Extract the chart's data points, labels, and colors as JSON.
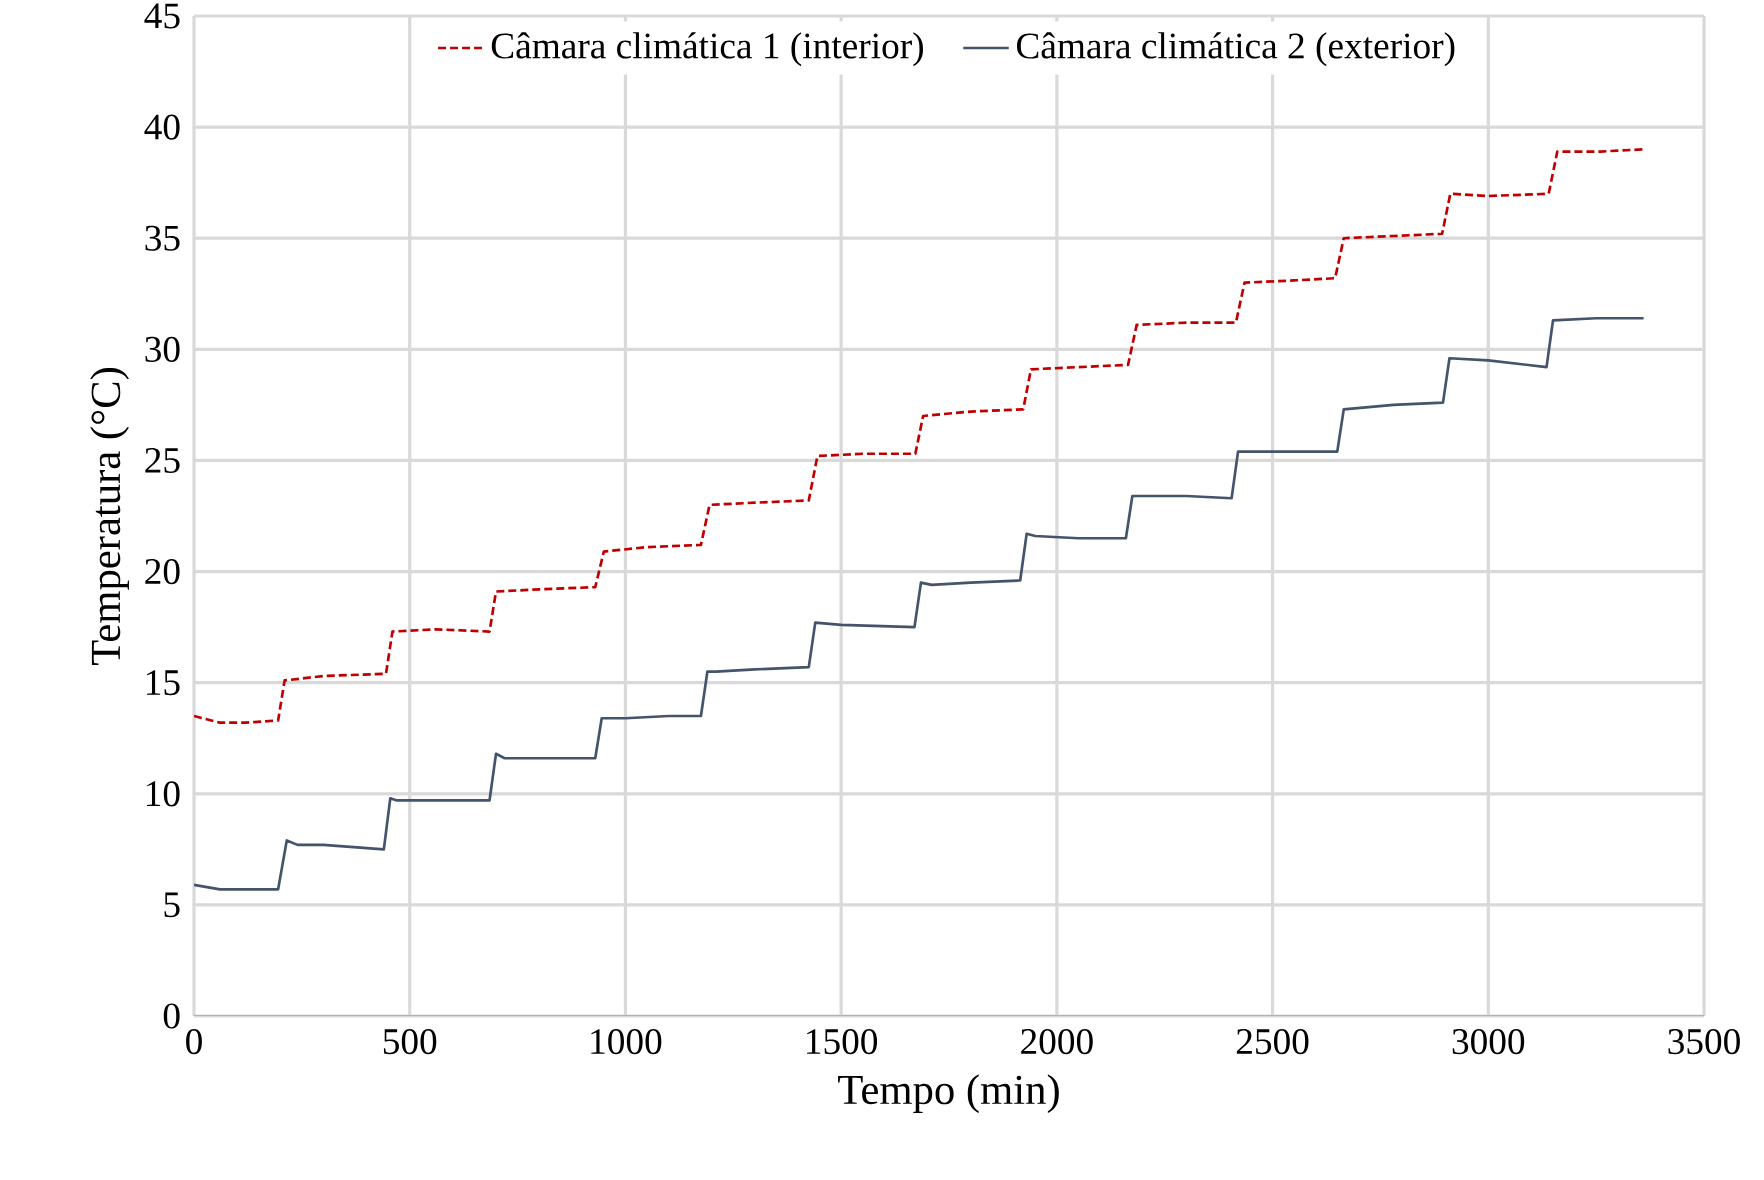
{
  "chart_data": {
    "type": "line",
    "xlabel": "Tempo (min)",
    "ylabel": "Temperatura (°C)",
    "xlim": [
      0,
      3500
    ],
    "ylim": [
      0,
      45
    ],
    "xticks": [
      0,
      500,
      1000,
      1500,
      2000,
      2500,
      3000,
      3500
    ],
    "yticks": [
      0,
      5,
      10,
      15,
      20,
      25,
      30,
      35,
      40,
      45
    ],
    "grid": true,
    "legend": "top",
    "series": [
      {
        "name": "Câmara climática 1 (interior)",
        "color": "#c00000",
        "line_style": "dashed",
        "x": [
          0,
          60,
          120,
          195,
          210,
          300,
          445,
          460,
          560,
          685,
          700,
          800,
          930,
          950,
          1050,
          1175,
          1195,
          1300,
          1425,
          1445,
          1550,
          1672,
          1690,
          1800,
          1922,
          1940,
          2050,
          2165,
          2185,
          2300,
          2415,
          2435,
          2550,
          2645,
          2665,
          2780,
          2893,
          2912,
          3000,
          3140,
          3160,
          3260,
          3360
        ],
        "values": [
          13.5,
          13.2,
          13.2,
          13.3,
          15.1,
          15.3,
          15.4,
          17.3,
          17.4,
          17.3,
          19.1,
          19.2,
          19.3,
          20.9,
          21.1,
          21.2,
          23.0,
          23.1,
          23.2,
          25.2,
          25.3,
          25.3,
          27.0,
          27.2,
          27.3,
          29.1,
          29.2,
          29.3,
          31.1,
          31.2,
          31.2,
          33.0,
          33.1,
          33.2,
          35.0,
          35.1,
          35.2,
          37.0,
          36.9,
          37.0,
          38.9,
          38.9,
          39.0
        ]
      },
      {
        "name": "Câmara climática 2 (exterior)",
        "color": "#44546a",
        "line_style": "solid",
        "x": [
          0,
          60,
          120,
          195,
          215,
          240,
          300,
          440,
          455,
          470,
          560,
          685,
          700,
          720,
          800,
          930,
          945,
          1000,
          1100,
          1175,
          1190,
          1210,
          1300,
          1425,
          1440,
          1500,
          1670,
          1685,
          1710,
          1800,
          1915,
          1930,
          1950,
          2050,
          2160,
          2175,
          2300,
          2405,
          2420,
          2550,
          2650,
          2665,
          2780,
          2895,
          2910,
          3000,
          3135,
          3150,
          3250,
          3360
        ],
        "values": [
          5.9,
          5.7,
          5.7,
          5.7,
          7.9,
          7.7,
          7.7,
          7.5,
          9.8,
          9.7,
          9.7,
          9.7,
          11.8,
          11.6,
          11.6,
          11.6,
          13.4,
          13.4,
          13.5,
          13.5,
          15.5,
          15.5,
          15.6,
          15.7,
          17.7,
          17.6,
          17.5,
          19.5,
          19.4,
          19.5,
          19.6,
          21.7,
          21.6,
          21.5,
          21.5,
          23.4,
          23.4,
          23.3,
          25.4,
          25.4,
          25.4,
          27.3,
          27.5,
          27.6,
          29.6,
          29.5,
          29.2,
          31.3,
          31.4,
          31.4
        ]
      }
    ]
  }
}
